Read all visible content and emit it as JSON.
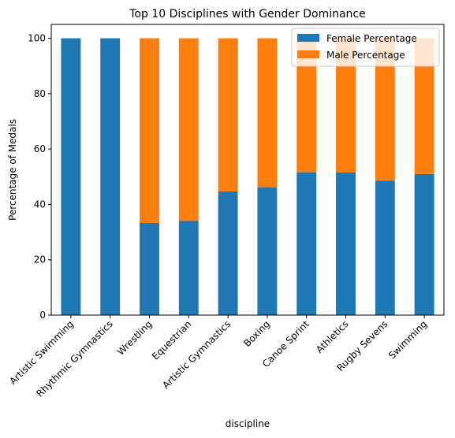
{
  "chart_data": {
    "type": "bar",
    "stacked": true,
    "title": "Top 10 Disciplines with Gender Dominance",
    "xlabel": "discipline",
    "ylabel": "Percentage of Medals",
    "ylim": [
      0,
      105
    ],
    "yticks": [
      0,
      20,
      40,
      60,
      80,
      100
    ],
    "grid": false,
    "legend_position": "top-right",
    "categories": [
      "Artistic Swimming",
      "Rhythmic Gymnastics",
      "Wrestling",
      "Equestrian",
      "Artistic Gymnastics",
      "Boxing",
      "Canoe Sprint",
      "Athletics",
      "Rugby Sevens",
      "Swimming"
    ],
    "series": [
      {
        "name": "Female Percentage",
        "color": "#1f77b4",
        "values": [
          100,
          100,
          33.3,
          34.0,
          44.7,
          46.2,
          51.6,
          51.5,
          48.6,
          51.0
        ]
      },
      {
        "name": "Male Percentage",
        "color": "#ff7f0e",
        "values": [
          0,
          0,
          66.7,
          66.0,
          55.3,
          53.8,
          48.4,
          48.5,
          51.4,
          49.0
        ]
      }
    ]
  }
}
